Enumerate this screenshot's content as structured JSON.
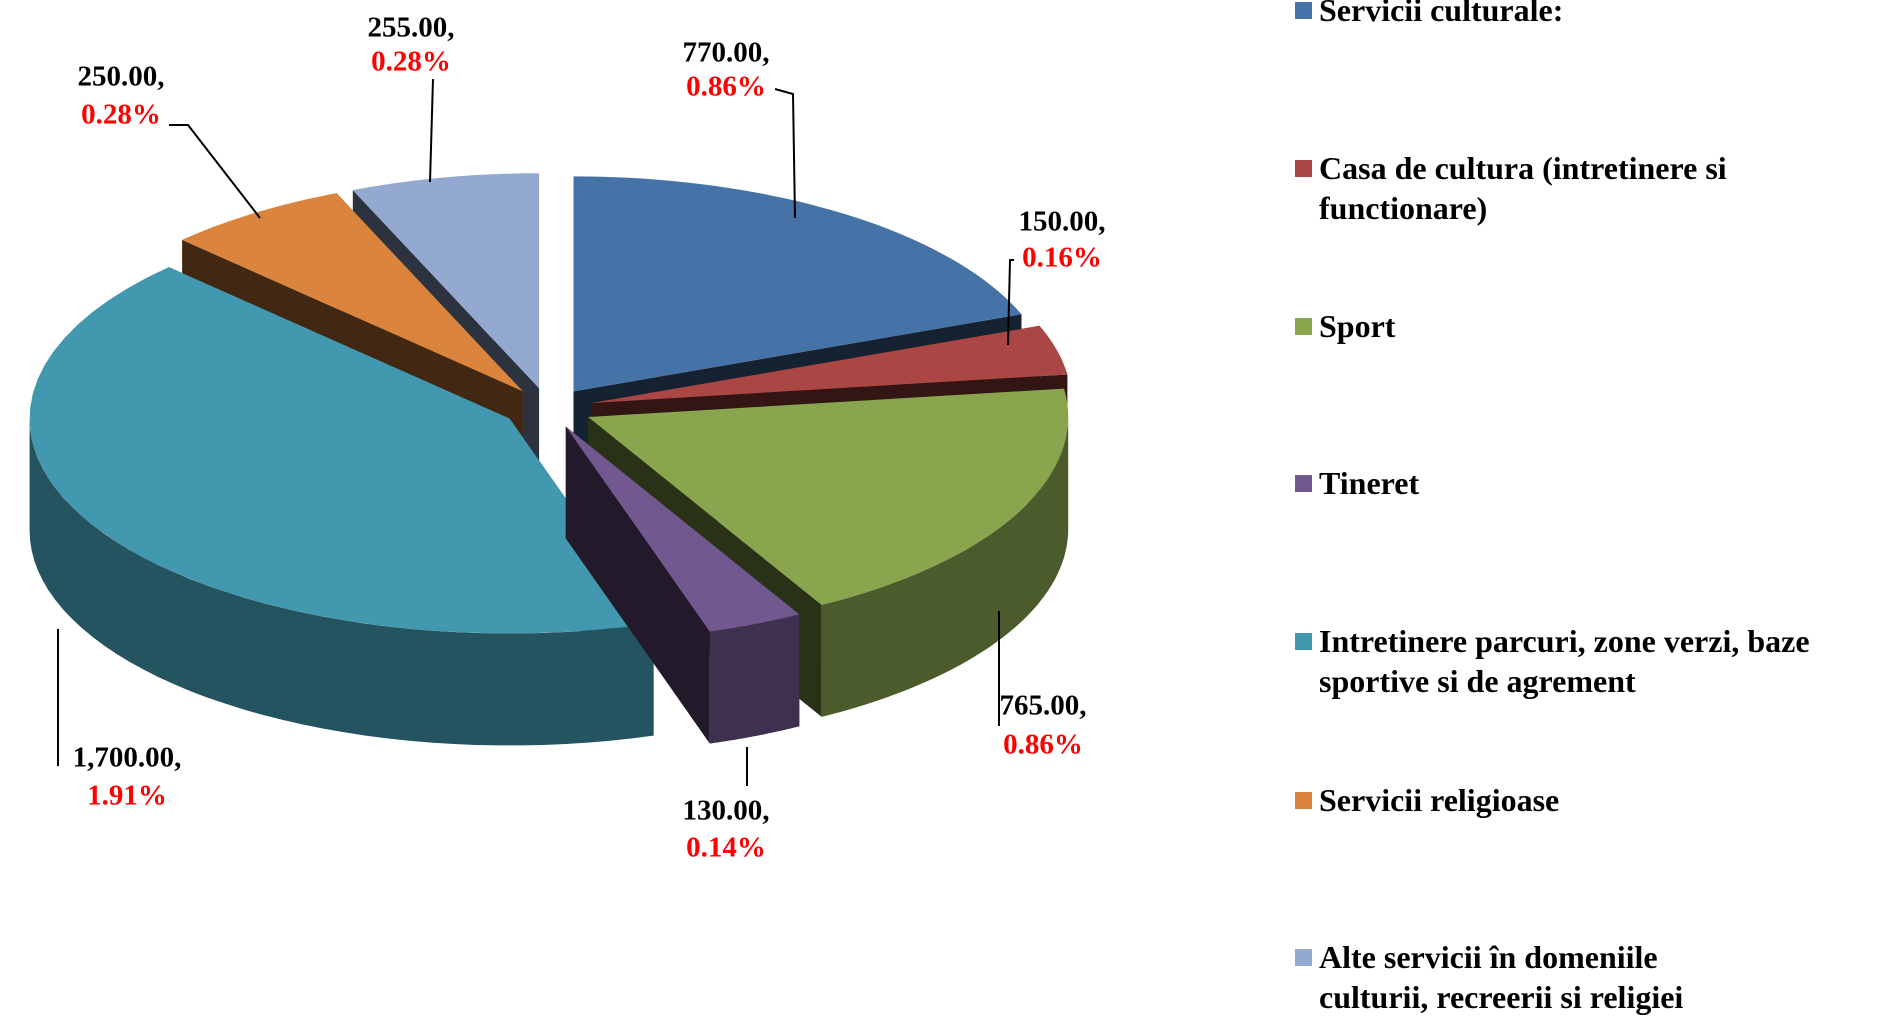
{
  "chart_data": {
    "type": "pie",
    "categories": [
      "Servicii culturale:",
      "Casa de cultura (intretinere si functionare)",
      "Sport",
      "Tineret",
      "Intretinere parcuri, zone verzi, baze sportive si de agrement",
      "Servicii religioase",
      "Alte servicii în domeniile culturii, recreerii si religiei"
    ],
    "values": [
      770,
      150,
      765,
      130,
      1700,
      250,
      255
    ],
    "value_labels": [
      "770.00,",
      "150.00,",
      "765.00,",
      "130.00,",
      "1,700.00,",
      "250.00,",
      "255.00,"
    ],
    "percentages": [
      0.86,
      0.16,
      0.86,
      0.14,
      1.91,
      0.28,
      0.28
    ],
    "percentage_labels": [
      "0.86%",
      "0.16%",
      "0.86%",
      "0.14%",
      "1.91%",
      "0.28%",
      "0.28%"
    ],
    "colors": [
      "#4572a7",
      "#aa4643",
      "#89a54e",
      "#71588f",
      "#4198af",
      "#db843d",
      "#93a9cf"
    ],
    "legend": "right"
  }
}
